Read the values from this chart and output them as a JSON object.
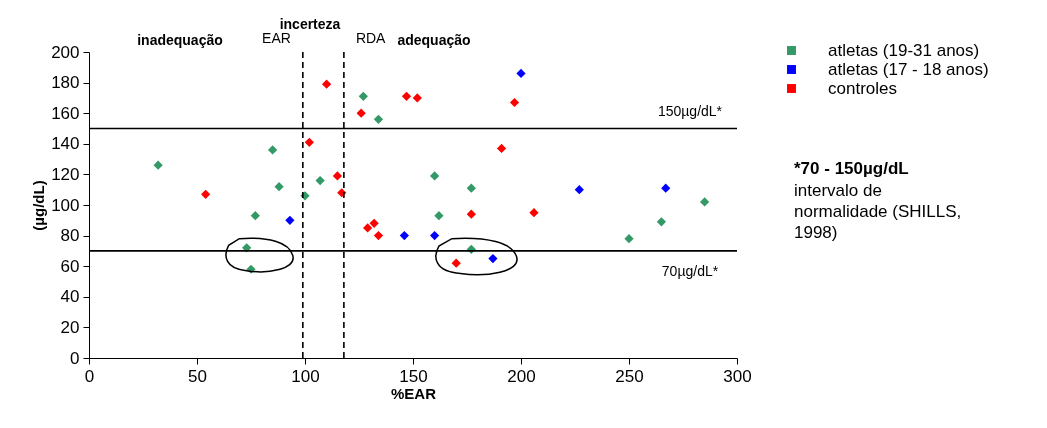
{
  "chart_data": {
    "type": "scatter",
    "xlabel": "%EAR",
    "ylabel": "(µg/dL)",
    "xlim": [
      0,
      300
    ],
    "xticks": [
      0,
      50,
      100,
      150,
      200,
      250,
      300
    ],
    "ylim": [
      0,
      200
    ],
    "yticks": [
      0,
      20,
      40,
      60,
      80,
      100,
      120,
      140,
      160,
      180,
      200
    ],
    "grid": false,
    "legend": "right",
    "marker": "diamond",
    "series": [
      {
        "name": "atletas (19-31 anos)",
        "color": "#339966",
        "x": [
          32,
          85,
          88,
          77,
          73,
          75,
          100,
          107,
          127,
          134,
          160,
          177,
          162,
          177,
          250,
          265,
          285
        ],
        "values": [
          126,
          136,
          112,
          93,
          72,
          58,
          106,
          116,
          171,
          156,
          119,
          111,
          93,
          71,
          78,
          89,
          102
        ]
      },
      {
        "name": "atletas (17 - 18 anos)",
        "color": "#0000ff",
        "x": [
          93,
          146,
          200,
          160,
          187,
          227,
          267
        ],
        "values": [
          90,
          80,
          186,
          80,
          65,
          110,
          111
        ]
      },
      {
        "name": "controles",
        "color": "#ff0000",
        "x": [
          54,
          110,
          102,
          115,
          117,
          126,
          129,
          132,
          134,
          147,
          152,
          197,
          191,
          177,
          206,
          170
        ],
        "values": [
          107,
          179,
          141,
          119,
          108,
          160,
          85,
          88,
          80,
          171,
          170,
          167,
          137,
          94,
          95,
          62
        ]
      }
    ],
    "ref_lines": [
      {
        "axis": "y",
        "value": 150,
        "label": "150µg/dL*",
        "line_style": "solid"
      },
      {
        "axis": "y",
        "value": 70,
        "label": "70µg/dL*",
        "line_style": "solid"
      },
      {
        "axis": "x",
        "value": 99,
        "label": "EAR",
        "line_style": "dashed"
      },
      {
        "axis": "x",
        "value": 118,
        "label": "RDA",
        "line_style": "dashed"
      }
    ],
    "annotations": [
      "inadequação",
      "incerteza",
      "adequação",
      "*70 - 150µg/dL",
      "intervalo de normalidade (SHILLS, 1998)"
    ]
  }
}
